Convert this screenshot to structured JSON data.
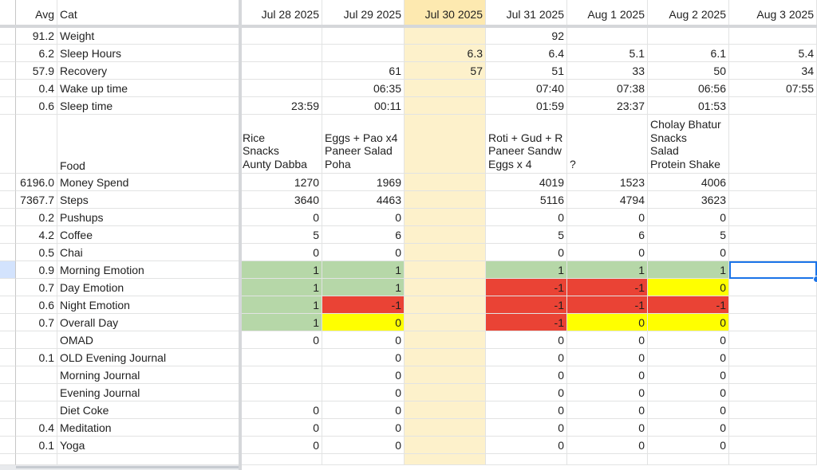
{
  "colors": {
    "today": "#fdf1cb",
    "green": "#b6d7a8",
    "red": "#ea4335",
    "yellow": "#ffff00",
    "selection": "#1a73e8"
  },
  "header": {
    "avg": "Avg",
    "cat": "Cat",
    "dates": [
      "Jul 28 2025",
      "Jul 29 2025",
      "Jul 30 2025",
      "Jul 31 2025",
      "Aug 1 2025",
      "Aug 2 2025",
      "Aug 3 2025"
    ],
    "today_index": 2
  },
  "rows": [
    {
      "avg": "91.2",
      "cat": "Weight",
      "values": [
        "",
        "",
        "",
        "92",
        "",
        "",
        ""
      ]
    },
    {
      "avg": "6.2",
      "cat": "Sleep Hours",
      "values": [
        "",
        "",
        "6.3",
        "6.4",
        "5.1",
        "6.1",
        "5.4"
      ]
    },
    {
      "avg": "57.9",
      "cat": "Recovery",
      "values": [
        "",
        "61",
        "57",
        "51",
        "33",
        "50",
        "34"
      ]
    },
    {
      "avg": "0.4",
      "cat": "Wake up time",
      "values": [
        "",
        "06:35",
        "",
        "07:40",
        "07:38",
        "06:56",
        "07:55"
      ]
    },
    {
      "avg": "0.6",
      "cat": "Sleep time",
      "values": [
        "23:59",
        "00:11",
        "",
        "01:59",
        "23:37",
        "01:53",
        ""
      ]
    },
    {
      "avg": "",
      "cat": "Food",
      "multiline": true,
      "values": [
        "Rice\nSnacks\nAunty Dabba",
        "Eggs + Pao x4\nPaneer Salad\nPoha",
        "",
        "Roti + Gud + R\nPaneer Sandw\nEggs x 4",
        "\n\n?",
        "Cholay Bhatur\nSnacks\nSalad\nProtein Shake",
        ""
      ]
    },
    {
      "avg": "6196.0",
      "cat": "Money Spend",
      "values": [
        "1270",
        "1969",
        "",
        "4019",
        "1523",
        "4006",
        ""
      ]
    },
    {
      "avg": "7367.7",
      "cat": "Steps",
      "values": [
        "3640",
        "4463",
        "",
        "5116",
        "4794",
        "3623",
        ""
      ]
    },
    {
      "avg": "0.2",
      "cat": "Pushups",
      "values": [
        "0",
        "0",
        "",
        "0",
        "0",
        "0",
        ""
      ]
    },
    {
      "avg": "4.2",
      "cat": "Coffee",
      "values": [
        "5",
        "6",
        "",
        "5",
        "6",
        "5",
        ""
      ]
    },
    {
      "avg": "0.5",
      "cat": "Chai",
      "values": [
        "0",
        "0",
        "",
        "0",
        "0",
        "0",
        ""
      ]
    },
    {
      "avg": "0.9",
      "cat": "Morning Emotion",
      "values": [
        "1",
        "1",
        "",
        "1",
        "1",
        "1",
        ""
      ],
      "fills": [
        "green",
        "green",
        "",
        "green",
        "green",
        "green",
        ""
      ],
      "selected": 6
    },
    {
      "avg": "0.7",
      "cat": "Day Emotion",
      "values": [
        "1",
        "1",
        "",
        "-1",
        "-1",
        "0",
        ""
      ],
      "fills": [
        "green",
        "green",
        "",
        "red",
        "red",
        "yellow",
        ""
      ]
    },
    {
      "avg": "0.6",
      "cat": "Night Emotion",
      "values": [
        "1",
        "-1",
        "",
        "-1",
        "-1",
        "-1",
        ""
      ],
      "fills": [
        "green",
        "red",
        "",
        "red",
        "red",
        "red",
        ""
      ]
    },
    {
      "avg": "0.7",
      "cat": "Overall Day",
      "values": [
        "1",
        "0",
        "",
        "-1",
        "0",
        "0",
        ""
      ],
      "fills": [
        "green",
        "yellow",
        "",
        "red",
        "yellow",
        "yellow",
        ""
      ]
    },
    {
      "avg": "",
      "cat": "OMAD",
      "values": [
        "0",
        "0",
        "",
        "0",
        "0",
        "0",
        ""
      ]
    },
    {
      "avg": "0.1",
      "cat": "OLD Evening Journal",
      "values": [
        "",
        "0",
        "",
        "0",
        "0",
        "0",
        ""
      ]
    },
    {
      "avg": "",
      "cat": "Morning Journal",
      "values": [
        "",
        "0",
        "",
        "0",
        "0",
        "0",
        ""
      ]
    },
    {
      "avg": "",
      "cat": "Evening Journal",
      "values": [
        "",
        "0",
        "",
        "0",
        "0",
        "0",
        ""
      ]
    },
    {
      "avg": "",
      "cat": "Diet Coke",
      "values": [
        "0",
        "0",
        "",
        "0",
        "0",
        "0",
        ""
      ]
    },
    {
      "avg": "0.4",
      "cat": "Meditation",
      "values": [
        "0",
        "0",
        "",
        "0",
        "0",
        "0",
        ""
      ]
    },
    {
      "avg": "0.1",
      "cat": "Yoga",
      "values": [
        "0",
        "0",
        "",
        "0",
        "0",
        "0",
        ""
      ]
    },
    {
      "avg": "",
      "cat": "",
      "values": [
        "",
        "",
        "",
        "",
        "",
        "",
        ""
      ]
    }
  ]
}
